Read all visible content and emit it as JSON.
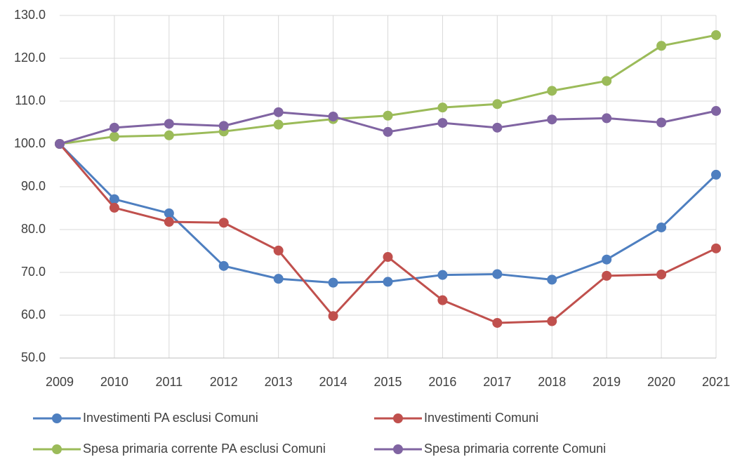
{
  "chart_data": {
    "type": "line",
    "categories": [
      "2009",
      "2010",
      "2011",
      "2012",
      "2013",
      "2014",
      "2015",
      "2016",
      "2017",
      "2018",
      "2019",
      "2020",
      "2021"
    ],
    "series": [
      {
        "name": "Investimenti PA esclusi Comuni",
        "color": "#4e7fc0",
        "values": [
          100,
          87.1,
          83.8,
          71.5,
          68.5,
          67.6,
          67.8,
          69.4,
          69.6,
          68.3,
          73.0,
          80.5,
          92.8
        ]
      },
      {
        "name": "Investimenti Comuni",
        "color": "#c0504d",
        "values": [
          100,
          85.1,
          81.8,
          81.6,
          75.1,
          59.8,
          73.6,
          63.5,
          58.2,
          58.6,
          69.2,
          69.5,
          75.6
        ]
      },
      {
        "name": "Spesa primaria corrente PA esclusi Comuni",
        "color": "#9bbb59",
        "values": [
          100,
          101.7,
          102.0,
          102.9,
          104.5,
          105.8,
          106.6,
          108.5,
          109.3,
          112.4,
          114.7,
          122.9,
          125.4
        ]
      },
      {
        "name": "Spesa primaria corrente Comuni",
        "color": "#8064a2",
        "values": [
          100,
          103.8,
          104.7,
          104.2,
          107.4,
          106.4,
          102.8,
          104.9,
          103.8,
          105.7,
          106.0,
          105.0,
          107.7
        ]
      }
    ],
    "ylim": [
      50,
      130
    ],
    "yticks": [
      {
        "value": 50,
        "label": "50.0"
      },
      {
        "value": 60,
        "label": "60.0"
      },
      {
        "value": 70,
        "label": "70.0"
      },
      {
        "value": 80,
        "label": "80.0"
      },
      {
        "value": 90,
        "label": "90.0"
      },
      {
        "value": 100,
        "label": "100.0"
      },
      {
        "value": 110,
        "label": "110.0"
      },
      {
        "value": 120,
        "label": "120.0"
      },
      {
        "value": 130,
        "label": "130.0"
      }
    ],
    "grid": true
  }
}
